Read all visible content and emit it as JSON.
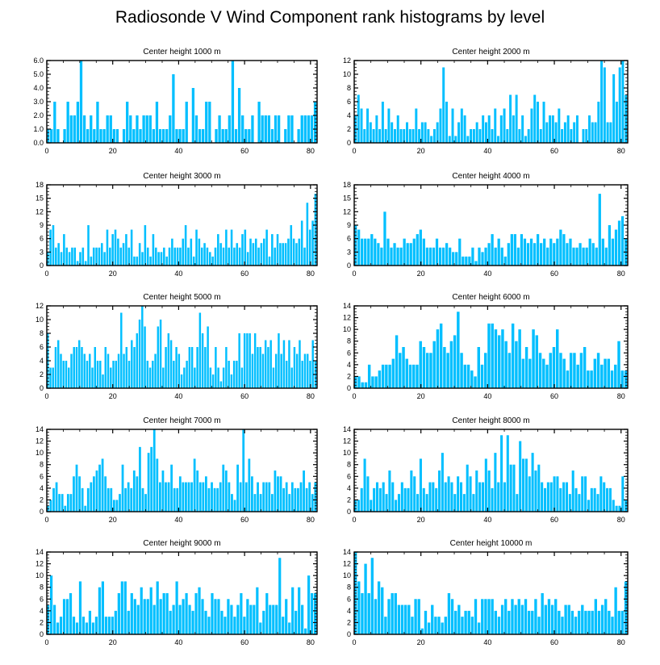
{
  "title": "Radiosonde V Wind Component rank histograms by level",
  "colors": {
    "bar": "#00bfff",
    "axis": "#000000",
    "background": "#ffffff"
  },
  "chart_data": [
    {
      "type": "bar",
      "title": "Center height 1000 m",
      "xlim": [
        0,
        82
      ],
      "ylim": [
        0,
        6
      ],
      "xticks": [
        "0",
        "20",
        "40",
        "60",
        "80"
      ],
      "yticks": [
        "0.0",
        "1.0",
        "2.0",
        "3.0",
        "4.0",
        "5.0",
        "6.0"
      ],
      "values": [
        1,
        1,
        3,
        1,
        0,
        1,
        3,
        2,
        2,
        3,
        6,
        2,
        1,
        2,
        1,
        3,
        1,
        1,
        2,
        2,
        1,
        1,
        0,
        1,
        3,
        2,
        1,
        2,
        1,
        2,
        2,
        2,
        1,
        3,
        1,
        1,
        1,
        2,
        5,
        1,
        1,
        1,
        3,
        0,
        4,
        2,
        1,
        1,
        3,
        3,
        0,
        1,
        2,
        1,
        1,
        2,
        6,
        1,
        4,
        2,
        1,
        1,
        2,
        0,
        3,
        2,
        2,
        2,
        1,
        2,
        2,
        0,
        1,
        2,
        2,
        0,
        1,
        2,
        2,
        2,
        2,
        3
      ]
    },
    {
      "type": "bar",
      "title": "Center height 2000 m",
      "xlim": [
        0,
        82
      ],
      "ylim": [
        0,
        12
      ],
      "xticks": [
        "0",
        "20",
        "40",
        "60",
        "80"
      ],
      "yticks": [
        "0",
        "2",
        "4",
        "6",
        "8",
        "10",
        "12"
      ],
      "values": [
        4,
        7,
        5,
        2,
        5,
        3,
        2,
        4,
        2,
        6,
        2,
        5,
        3,
        2,
        4,
        2,
        2,
        3,
        2,
        2,
        5,
        2,
        3,
        3,
        2,
        1,
        2,
        3,
        5,
        11,
        6,
        1,
        5,
        1,
        3,
        5,
        4,
        1,
        2,
        2,
        3,
        2,
        4,
        3,
        4,
        2,
        5,
        1,
        4,
        5,
        2,
        7,
        4,
        7,
        2,
        4,
        1,
        2,
        5,
        7,
        6,
        2,
        6,
        3,
        4,
        4,
        3,
        5,
        2,
        3,
        4,
        2,
        3,
        4,
        0,
        2,
        2,
        4,
        3,
        3,
        6,
        12,
        11,
        3,
        3,
        10,
        6,
        11,
        12,
        7
      ]
    },
    {
      "type": "bar",
      "title": "Center height 3000 m",
      "xlim": [
        0,
        82
      ],
      "ylim": [
        0,
        18
      ],
      "xticks": [
        "0",
        "20",
        "40",
        "60",
        "80"
      ],
      "yticks": [
        "0",
        "3",
        "6",
        "9",
        "12",
        "15",
        "18"
      ],
      "values": [
        3,
        8,
        9,
        4,
        5,
        3,
        7,
        4,
        3,
        4,
        4,
        1,
        3,
        4,
        1,
        9,
        2,
        4,
        4,
        4,
        5,
        3,
        8,
        4,
        7,
        8,
        6,
        4,
        5,
        7,
        4,
        8,
        2,
        2,
        5,
        3,
        9,
        4,
        2,
        7,
        4,
        3,
        3,
        4,
        2,
        4,
        6,
        4,
        4,
        4,
        6,
        9,
        4,
        6,
        2,
        8,
        6,
        4,
        5,
        4,
        3,
        2,
        4,
        7,
        5,
        4,
        8,
        4,
        8,
        4,
        5,
        4,
        7,
        8,
        3,
        6,
        5,
        6,
        4,
        5,
        6,
        8,
        2,
        7,
        4,
        7,
        5,
        5,
        5,
        6,
        9,
        6,
        5,
        6,
        10,
        4,
        14,
        8,
        10,
        16
      ]
    },
    {
      "type": "bar",
      "title": "Center height 4000 m",
      "xlim": [
        0,
        82
      ],
      "ylim": [
        0,
        18
      ],
      "xticks": [
        "0",
        "20",
        "40",
        "60",
        "80"
      ],
      "yticks": [
        "0",
        "3",
        "6",
        "9",
        "12",
        "15",
        "18"
      ],
      "values": [
        9,
        8,
        6,
        6,
        6,
        7,
        6,
        5,
        4,
        12,
        6,
        4,
        5,
        4,
        4,
        6,
        5,
        5,
        6,
        7,
        8,
        6,
        4,
        4,
        4,
        6,
        4,
        4,
        5,
        4,
        3,
        3,
        6,
        2,
        2,
        2,
        4,
        1,
        4,
        3,
        4,
        5,
        7,
        4,
        6,
        4,
        2,
        5,
        7,
        7,
        4,
        7,
        6,
        5,
        6,
        5,
        7,
        5,
        6,
        4,
        6,
        5,
        6,
        8,
        7,
        5,
        6,
        4,
        4,
        5,
        4,
        4,
        6,
        5,
        4,
        16,
        6,
        4,
        9,
        6,
        8,
        10,
        11,
        6
      ]
    },
    {
      "type": "bar",
      "title": "Center height 5000 m",
      "xlim": [
        0,
        82
      ],
      "ylim": [
        0,
        12
      ],
      "xticks": [
        "0",
        "20",
        "40",
        "60",
        "80"
      ],
      "yticks": [
        "0",
        "2",
        "4",
        "6",
        "8",
        "10",
        "12"
      ],
      "values": [
        8,
        3,
        3,
        6,
        7,
        5,
        4,
        4,
        3,
        5,
        6,
        6,
        7,
        6,
        5,
        4,
        5,
        3,
        6,
        4,
        4,
        2,
        6,
        5,
        3,
        4,
        4,
        5,
        11,
        5,
        6,
        4,
        7,
        6,
        8,
        10,
        12,
        9,
        4,
        3,
        4,
        5,
        9,
        10,
        3,
        6,
        8,
        7,
        4,
        6,
        5,
        2,
        3,
        4,
        6,
        6,
        3,
        6,
        11,
        8,
        6,
        9,
        3,
        2,
        6,
        3,
        1,
        3,
        6,
        4,
        2,
        4,
        4,
        8,
        3,
        8,
        8,
        8,
        5,
        8,
        6,
        6,
        5,
        7,
        6,
        7,
        3,
        5,
        8,
        5,
        7,
        4,
        7,
        3,
        6,
        5,
        7,
        4,
        5,
        5,
        4,
        7,
        4
      ]
    },
    {
      "type": "bar",
      "title": "Center height 6000 m",
      "xlim": [
        0,
        82
      ],
      "ylim": [
        0,
        14
      ],
      "xticks": [
        "0",
        "20",
        "40",
        "60",
        "80"
      ],
      "yticks": [
        "0",
        "2",
        "4",
        "6",
        "8",
        "10",
        "12",
        "14"
      ],
      "values": [
        2,
        2,
        1,
        1,
        4,
        2,
        2,
        3,
        4,
        4,
        4,
        5,
        9,
        6,
        7,
        5,
        4,
        4,
        4,
        8,
        7,
        6,
        6,
        8,
        10,
        11,
        7,
        6,
        8,
        9,
        13,
        6,
        4,
        4,
        3,
        2,
        7,
        4,
        6,
        11,
        11,
        10,
        9,
        10,
        8,
        6,
        11,
        8,
        10,
        5,
        7,
        5,
        10,
        9,
        6,
        5,
        4,
        6,
        7,
        10,
        6,
        5,
        3,
        6,
        6,
        4,
        6,
        7,
        3,
        3,
        5,
        6,
        4,
        5,
        5,
        3,
        4,
        8,
        3,
        3
      ]
    },
    {
      "type": "bar",
      "title": "Center height 7000 m",
      "xlim": [
        0,
        82
      ],
      "ylim": [
        0,
        14
      ],
      "xticks": [
        "0",
        "20",
        "40",
        "60",
        "80"
      ],
      "yticks": [
        "0",
        "2",
        "4",
        "6",
        "8",
        "10",
        "12",
        "14"
      ],
      "values": [
        1,
        2,
        4,
        5,
        3,
        3,
        1,
        3,
        3,
        6,
        8,
        6,
        4,
        1,
        4,
        5,
        6,
        7,
        8,
        9,
        6,
        4,
        4,
        2,
        2,
        3,
        8,
        4,
        5,
        4,
        7,
        6,
        11,
        4,
        3,
        10,
        11,
        14,
        9,
        5,
        7,
        5,
        5,
        8,
        4,
        4,
        6,
        5,
        5,
        5,
        5,
        9,
        7,
        5,
        5,
        6,
        4,
        5,
        4,
        4,
        5,
        8,
        7,
        5,
        3,
        2,
        8,
        5,
        14,
        5,
        9,
        6,
        3,
        5,
        3,
        5,
        5,
        5,
        3,
        7,
        6,
        6,
        4,
        5,
        3,
        5,
        4,
        4,
        5,
        7,
        4,
        5,
        3,
        5
      ]
    },
    {
      "type": "bar",
      "title": "Center height 8000 m",
      "xlim": [
        0,
        82
      ],
      "ylim": [
        0,
        14
      ],
      "xticks": [
        "0",
        "20",
        "40",
        "60",
        "80"
      ],
      "yticks": [
        "0",
        "2",
        "4",
        "6",
        "8",
        "10",
        "12",
        "14"
      ],
      "values": [
        2,
        2,
        4,
        9,
        6,
        2,
        4,
        5,
        4,
        5,
        3,
        7,
        5,
        2,
        3,
        5,
        4,
        4,
        7,
        6,
        3,
        9,
        4,
        3,
        5,
        5,
        4,
        7,
        10,
        5,
        6,
        5,
        3,
        6,
        5,
        3,
        8,
        6,
        3,
        7,
        5,
        5,
        9,
        7,
        4,
        10,
        5,
        13,
        5,
        13,
        8,
        8,
        3,
        12,
        9,
        9,
        6,
        10,
        7,
        8,
        5,
        4,
        5,
        5,
        6,
        6,
        4,
        5,
        5,
        3,
        7,
        4,
        3,
        6,
        6,
        2,
        4,
        4,
        3,
        6,
        5,
        4,
        4,
        2,
        1,
        1,
        6,
        2
      ]
    },
    {
      "type": "bar",
      "title": "Center height 9000 m",
      "xlim": [
        0,
        82
      ],
      "ylim": [
        0,
        14
      ],
      "xticks": [
        "0",
        "20",
        "40",
        "60",
        "80"
      ],
      "yticks": [
        "0",
        "2",
        "4",
        "6",
        "8",
        "10",
        "12",
        "14"
      ],
      "values": [
        5,
        10,
        5,
        2,
        3,
        6,
        6,
        7,
        3,
        2,
        9,
        3,
        2,
        4,
        2,
        3,
        8,
        9,
        3,
        3,
        3,
        4,
        7,
        9,
        9,
        4,
        7,
        6,
        5,
        8,
        6,
        6,
        8,
        5,
        9,
        6,
        7,
        7,
        4,
        5,
        9,
        5,
        6,
        7,
        5,
        4,
        7,
        8,
        6,
        4,
        3,
        7,
        6,
        6,
        4,
        3,
        6,
        5,
        3,
        5,
        7,
        3,
        6,
        5,
        5,
        8,
        2,
        4,
        7,
        5,
        5,
        5,
        13,
        3,
        6,
        2,
        8,
        4,
        8,
        5,
        1,
        10,
        7,
        7
      ]
    },
    {
      "type": "bar",
      "title": "Center height 10000 m",
      "xlim": [
        0,
        82
      ],
      "ylim": [
        0,
        14
      ],
      "xticks": [
        "0",
        "20",
        "40",
        "60",
        "80"
      ],
      "yticks": [
        "0",
        "2",
        "4",
        "6",
        "8",
        "10",
        "12",
        "14"
      ],
      "values": [
        14,
        9,
        7,
        12,
        7,
        13,
        6,
        9,
        8,
        3,
        6,
        7,
        7,
        5,
        5,
        5,
        5,
        3,
        6,
        6,
        1,
        4,
        2,
        5,
        3,
        3,
        2,
        3,
        7,
        6,
        4,
        5,
        3,
        4,
        4,
        3,
        6,
        2,
        6,
        6,
        6,
        6,
        4,
        3,
        5,
        6,
        4,
        6,
        5,
        6,
        5,
        6,
        4,
        4,
        6,
        3,
        7,
        5,
        6,
        5,
        6,
        4,
        3,
        5,
        5,
        4,
        3,
        4,
        5,
        4,
        4,
        4,
        6,
        4,
        5,
        6,
        4,
        3,
        8,
        4,
        4,
        9
      ]
    }
  ]
}
